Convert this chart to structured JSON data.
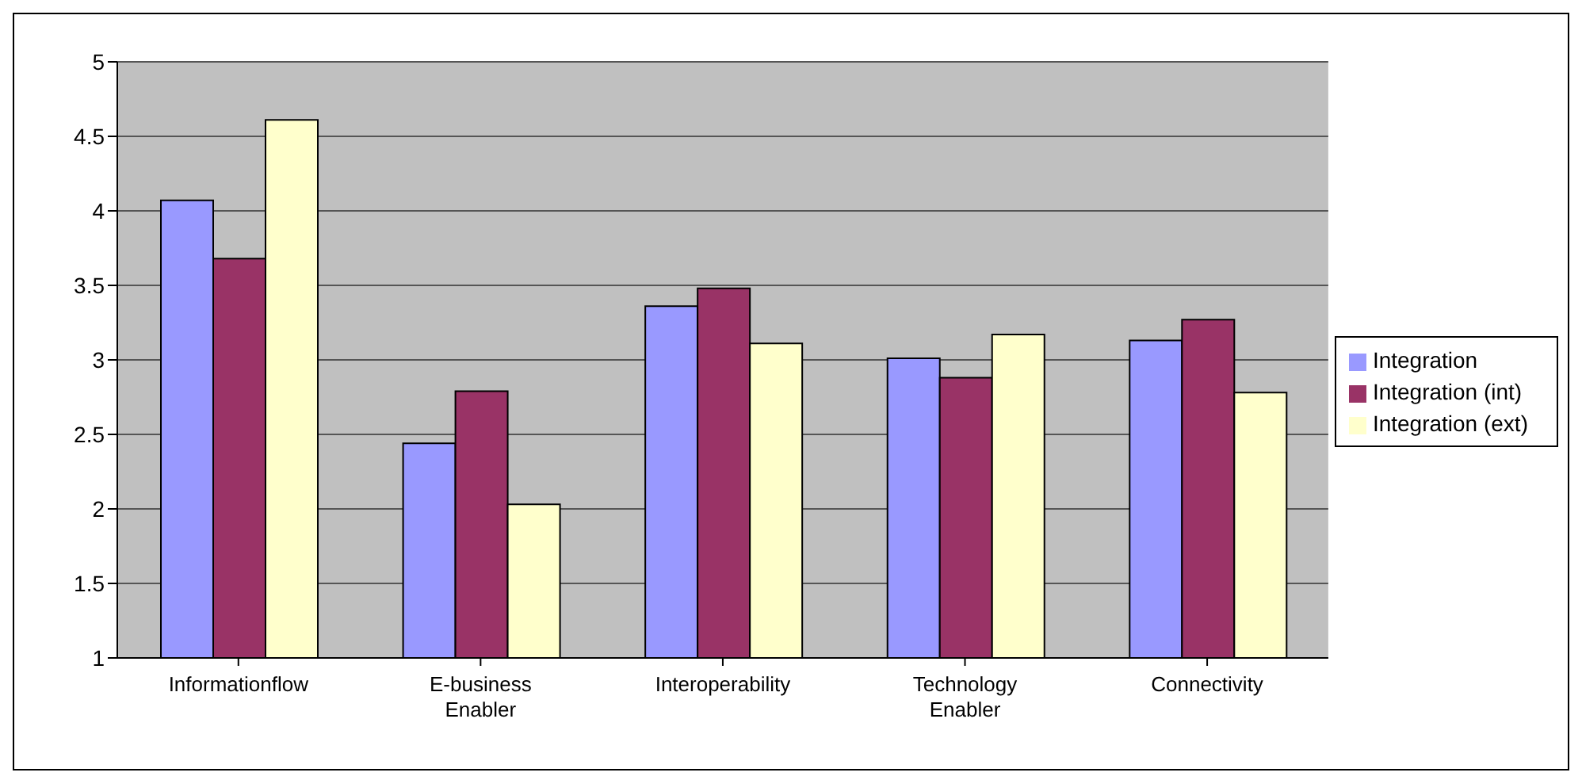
{
  "chart_data": {
    "type": "bar",
    "categories": [
      "Informationflow",
      "E-business Enabler",
      "Interoperability",
      "Technology Enabler",
      "Connectivity"
    ],
    "series": [
      {
        "name": "Integration",
        "color": "#9999ff",
        "values": [
          4.07,
          2.44,
          3.36,
          3.01,
          3.13
        ]
      },
      {
        "name": "Integration (int)",
        "color": "#993366",
        "values": [
          3.68,
          2.79,
          3.48,
          2.88,
          3.27
        ]
      },
      {
        "name": "Integration (ext)",
        "color": "#ffffcc",
        "values": [
          4.61,
          2.03,
          3.11,
          3.17,
          2.78
        ]
      }
    ],
    "ylim": [
      1,
      5
    ],
    "yticks": [
      1,
      1.5,
      2,
      2.5,
      3,
      3.5,
      4,
      4.5,
      5
    ],
    "grid": "y",
    "legend": "right"
  }
}
